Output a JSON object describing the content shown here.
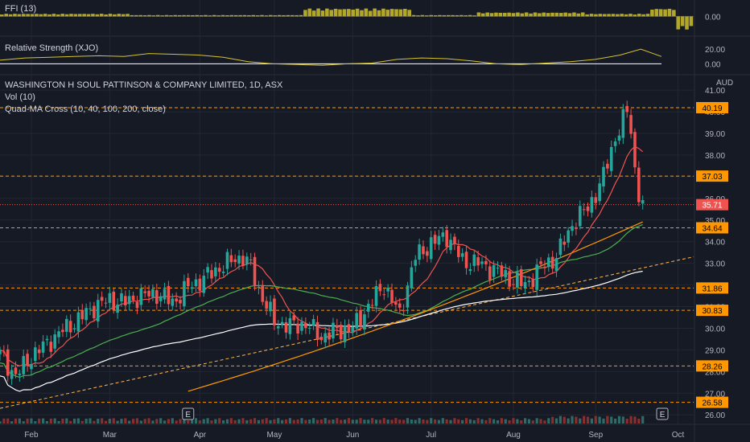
{
  "colors": {
    "background": "#161a25",
    "grid": "#232733",
    "separator": "#2a2e39",
    "text": "#d1d4dc",
    "axis_text": "#b2b5be",
    "up": "#26a69a",
    "down": "#ef5350",
    "ffi_bar": "#b3a72a",
    "rs_line": "#d6c430",
    "ma10": "#ef5350",
    "ma40": "#4caf50",
    "ma100": "#ffffff",
    "ma200": "#ff9800",
    "hline": "#ff9800",
    "trend": "#ffb74d",
    "price_label_bg": "#ff9800",
    "last_price_bg": "#ef5350",
    "volume_up": "#2e6b66",
    "volume_down": "#8a2e2e"
  },
  "legend": {
    "ffi": "FFI (13)",
    "rs": "Relative Strength (XJO)",
    "symbol": "WASHINGTON H SOUL PATTINSON & COMPANY LIMITED, 1D, ASX",
    "vol": "Vol (10)",
    "quad": "Quad-MA Cross (10, 40, 100, 200, close)",
    "currency": "AUD",
    "earnings_marker": "E"
  },
  "chart_data": [
    {
      "type": "bar",
      "name": "FFI (13)",
      "y_ticks": [
        "0.00"
      ],
      "x_range": [
        0,
        160
      ],
      "ylim": [
        -12,
        10
      ],
      "segments": [
        {
          "from": 0,
          "to": 30,
          "value": 2
        },
        {
          "from": 30,
          "to": 70,
          "value": 1
        },
        {
          "from": 70,
          "to": 95,
          "value": 6
        },
        {
          "from": 95,
          "to": 110,
          "value": 1
        },
        {
          "from": 110,
          "to": 135,
          "value": 3
        },
        {
          "from": 135,
          "to": 150,
          "value": 2
        },
        {
          "from": 150,
          "to": 156,
          "value": 6
        },
        {
          "from": 156,
          "to": 160,
          "value": -10
        }
      ]
    },
    {
      "type": "line",
      "name": "Relative Strength (XJO)",
      "y_ticks": [
        "20.00",
        "0.00"
      ],
      "ylim": [
        -5,
        30
      ],
      "x": [
        0,
        6,
        12,
        18,
        24,
        30,
        36,
        42,
        48,
        54,
        60,
        66,
        72,
        78,
        84,
        90,
        96,
        102,
        108,
        114,
        120,
        126,
        132,
        138,
        144,
        150,
        155,
        160
      ],
      "values": [
        5,
        8,
        9,
        10,
        11,
        10,
        14,
        13,
        12,
        9,
        3,
        0,
        -1,
        -2,
        0,
        1,
        6,
        8,
        7,
        4,
        0,
        -1,
        1,
        3,
        6,
        12,
        20,
        10
      ]
    },
    {
      "type": "candlestick",
      "name": "WASHINGTON H SOUL PATTINSON & COMPANY LIMITED, 1D, ASX",
      "currency": "AUD",
      "x_tick_labels": [
        "Feb",
        "Mar",
        "Apr",
        "May",
        "Jun",
        "Jul",
        "Aug",
        "Sep",
        "Oct"
      ],
      "x_tick_index": [
        8,
        28,
        51,
        70,
        90,
        110,
        131,
        152,
        173
      ],
      "x_range": [
        0,
        177
      ],
      "ylim": [
        25.6,
        41.6
      ],
      "y_ticks": [
        26.0,
        27.0,
        28.0,
        29.0,
        30.0,
        31.0,
        32.0,
        33.0,
        34.0,
        35.0,
        36.0,
        37.0,
        38.0,
        39.0,
        40.0,
        41.0
      ],
      "horizontal_levels": [
        40.19,
        37.03,
        34.64,
        31.86,
        30.83,
        28.26,
        26.58
      ],
      "last_price": 35.71,
      "close_anchors": {
        "x": [
          0,
          4,
          8,
          12,
          16,
          20,
          24,
          28,
          32,
          36,
          40,
          44,
          48,
          52,
          56,
          60,
          62,
          64,
          66,
          70,
          74,
          78,
          82,
          86,
          90,
          94,
          98,
          102,
          104,
          106,
          110,
          114,
          118,
          122,
          126,
          130,
          134,
          138,
          142,
          146,
          150,
          152,
          154,
          156,
          158,
          160,
          161,
          162,
          163,
          164
        ],
        "y": [
          28.8,
          27.8,
          28.7,
          29.3,
          29.9,
          30.4,
          31.0,
          31.3,
          31.2,
          31.5,
          31.6,
          31.2,
          31.9,
          32.3,
          32.8,
          33.2,
          33.3,
          32.8,
          31.8,
          30.3,
          30.1,
          30.2,
          29.6,
          29.9,
          30.0,
          31.0,
          32.0,
          30.6,
          32.0,
          33.3,
          33.9,
          34.3,
          33.1,
          33.0,
          32.7,
          32.3,
          32.0,
          32.8,
          33.3,
          34.8,
          35.6,
          36.2,
          37.0,
          38.3,
          39.2,
          40.0,
          39.2,
          37.3,
          36.2,
          35.7
        ]
      },
      "trend_line": {
        "x": [
          0,
          177
        ],
        "y": [
          26.3,
          33.3
        ]
      },
      "earnings_index": [
        48,
        169
      ],
      "volume": {
        "typical": 1,
        "spike_index": 168,
        "spike_value": 16,
        "ylim": [
          0,
          16.5
        ]
      },
      "moving_averages": [
        "10",
        "40",
        "100",
        "200"
      ]
    }
  ]
}
